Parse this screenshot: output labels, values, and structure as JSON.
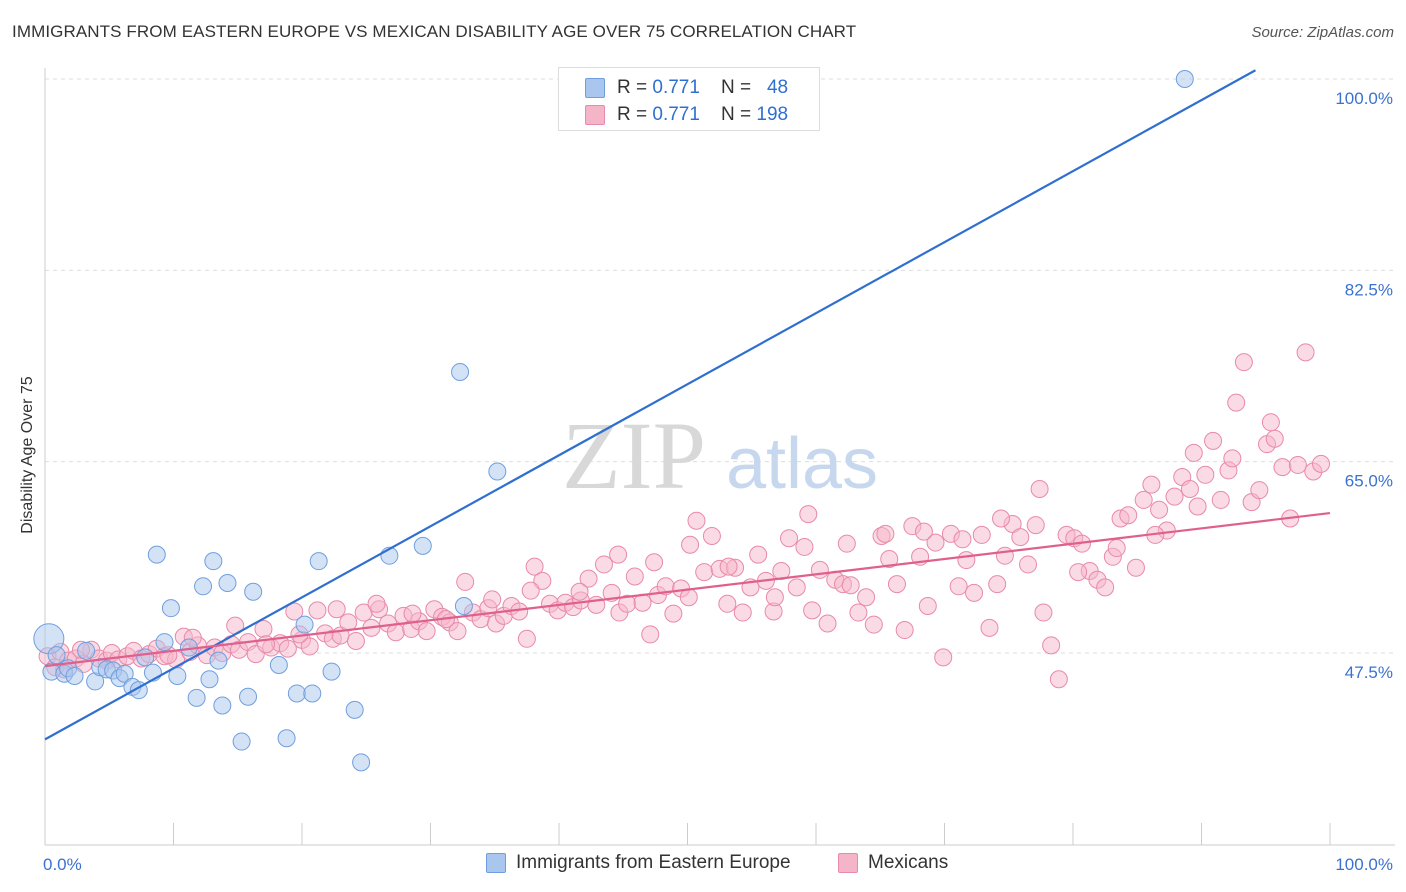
{
  "title": "IMMIGRANTS FROM EASTERN EUROPE VS MEXICAN DISABILITY AGE OVER 75 CORRELATION CHART",
  "source": "Source: ZipAtlas.com",
  "watermark": {
    "zip": "ZIP",
    "atlas": "atlas"
  },
  "legend_top": [
    {
      "r_label": "R = ",
      "r_value": "0.771",
      "n_label": "N = ",
      "n_value": "48",
      "color": "#a9c6ee"
    },
    {
      "r_label": "R = ",
      "r_value": "0.771",
      "n_label": "N = ",
      "n_value": "198",
      "color": "#f5b5c9"
    }
  ],
  "legend_bottom": [
    {
      "label": "Immigrants from Eastern Europe",
      "color": "#a9c6ee"
    },
    {
      "label": "Mexicans",
      "color": "#f5b5c9"
    }
  ],
  "chart_data": {
    "type": "scatter",
    "ylabel": "Disability Age Over 75",
    "xlim": [
      0,
      100
    ],
    "ylim": [
      29.3,
      100.8
    ],
    "y_ticks": [
      47.5,
      65.0,
      82.5,
      100.0
    ],
    "y_tick_labels": [
      "47.5%",
      "65.0%",
      "82.5%",
      "100.0%"
    ],
    "x_tick_labels": [
      "0.0%",
      "100.0%"
    ],
    "grid": true,
    "legend": "top-center",
    "colors": {
      "blue": "#2f6fd0",
      "pink": "#e0608d",
      "axis_label": "#3a72d0"
    },
    "series": [
      {
        "name": "Immigrants from Eastern Europe",
        "color": "#a9c6ee",
        "stroke": "#6f9fdf",
        "trend": {
          "x": [
            0,
            94.2
          ],
          "y": [
            39.6,
            100.8
          ]
        },
        "points": [
          [
            0.3,
            48.8
          ],
          [
            0.5,
            45.8
          ],
          [
            1.5,
            45.6
          ],
          [
            1.8,
            46.1
          ],
          [
            2.3,
            45.4
          ],
          [
            3.2,
            47.7
          ],
          [
            3.9,
            44.9
          ],
          [
            4.3,
            46.2
          ],
          [
            4.8,
            46.0
          ],
          [
            5.3,
            45.9
          ],
          [
            5.8,
            45.2
          ],
          [
            6.2,
            45.6
          ],
          [
            6.8,
            44.4
          ],
          [
            7.3,
            44.1
          ],
          [
            7.8,
            47.1
          ],
          [
            8.4,
            45.7
          ],
          [
            8.7,
            56.5
          ],
          [
            9.3,
            48.5
          ],
          [
            9.8,
            51.6
          ],
          [
            10.3,
            45.4
          ],
          [
            11.2,
            48.0
          ],
          [
            11.8,
            43.4
          ],
          [
            12.3,
            53.6
          ],
          [
            12.8,
            45.1
          ],
          [
            13.1,
            55.9
          ],
          [
            13.5,
            46.8
          ],
          [
            13.8,
            42.7
          ],
          [
            14.2,
            53.9
          ],
          [
            15.3,
            39.4
          ],
          [
            15.8,
            43.5
          ],
          [
            16.2,
            53.1
          ],
          [
            18.2,
            46.4
          ],
          [
            18.8,
            39.7
          ],
          [
            19.6,
            43.8
          ],
          [
            20.2,
            50.1
          ],
          [
            20.8,
            43.8
          ],
          [
            21.3,
            55.9
          ],
          [
            22.3,
            45.8
          ],
          [
            24.1,
            42.3
          ],
          [
            24.6,
            37.5
          ],
          [
            26.8,
            56.4
          ],
          [
            29.4,
            57.3
          ],
          [
            32.3,
            73.2
          ],
          [
            32.6,
            51.8
          ],
          [
            35.2,
            64.1
          ],
          [
            47.1,
            100.0
          ],
          [
            88.7,
            100.0
          ],
          [
            0.9,
            47.3
          ]
        ]
      },
      {
        "name": "Mexicans",
        "color": "#f5b5c9",
        "stroke": "#e88aab",
        "trend": {
          "x": [
            0,
            100
          ],
          "y": [
            46.3,
            60.3
          ]
        },
        "points": [
          [
            0.2,
            47.2
          ],
          [
            0.8,
            46.2
          ],
          [
            1.2,
            47.6
          ],
          [
            1.8,
            46.8
          ],
          [
            2.4,
            47.0
          ],
          [
            3.0,
            46.5
          ],
          [
            3.6,
            47.8
          ],
          [
            4.2,
            47.0
          ],
          [
            4.8,
            46.8
          ],
          [
            5.2,
            47.5
          ],
          [
            5.7,
            46.9
          ],
          [
            6.4,
            47.2
          ],
          [
            6.9,
            47.7
          ],
          [
            7.5,
            47.0
          ],
          [
            8.1,
            47.4
          ],
          [
            8.7,
            47.9
          ],
          [
            9.3,
            47.2
          ],
          [
            10.2,
            46.9
          ],
          [
            10.8,
            49.0
          ],
          [
            11.3,
            47.6
          ],
          [
            11.9,
            48.2
          ],
          [
            12.6,
            47.3
          ],
          [
            13.2,
            48.0
          ],
          [
            13.8,
            47.5
          ],
          [
            14.5,
            48.3
          ],
          [
            15.1,
            47.8
          ],
          [
            15.8,
            48.5
          ],
          [
            16.4,
            47.4
          ],
          [
            17.0,
            49.7
          ],
          [
            17.6,
            48.0
          ],
          [
            18.3,
            48.4
          ],
          [
            18.9,
            47.9
          ],
          [
            19.4,
            51.3
          ],
          [
            20.0,
            48.7
          ],
          [
            20.6,
            48.1
          ],
          [
            21.2,
            51.4
          ],
          [
            21.8,
            49.3
          ],
          [
            22.4,
            48.8
          ],
          [
            23.0,
            49.1
          ],
          [
            23.6,
            50.3
          ],
          [
            24.2,
            48.6
          ],
          [
            24.8,
            51.2
          ],
          [
            25.4,
            49.8
          ],
          [
            26.0,
            51.5
          ],
          [
            26.7,
            50.2
          ],
          [
            27.3,
            49.4
          ],
          [
            27.9,
            50.9
          ],
          [
            28.5,
            49.7
          ],
          [
            29.1,
            50.4
          ],
          [
            29.7,
            49.5
          ],
          [
            30.3,
            51.5
          ],
          [
            30.9,
            50.8
          ],
          [
            31.5,
            50.3
          ],
          [
            32.1,
            49.5
          ],
          [
            32.7,
            54.0
          ],
          [
            33.3,
            51.2
          ],
          [
            33.9,
            50.6
          ],
          [
            34.5,
            51.6
          ],
          [
            35.1,
            50.2
          ],
          [
            35.7,
            50.9
          ],
          [
            36.3,
            51.8
          ],
          [
            36.9,
            51.3
          ],
          [
            37.5,
            48.8
          ],
          [
            38.1,
            55.4
          ],
          [
            38.7,
            54.1
          ],
          [
            39.3,
            52.0
          ],
          [
            39.9,
            51.4
          ],
          [
            40.5,
            52.1
          ],
          [
            41.1,
            51.7
          ],
          [
            41.7,
            52.3
          ],
          [
            42.3,
            54.3
          ],
          [
            42.9,
            51.9
          ],
          [
            43.5,
            55.6
          ],
          [
            44.1,
            53.0
          ],
          [
            44.7,
            51.2
          ],
          [
            45.3,
            52.0
          ],
          [
            45.9,
            54.5
          ],
          [
            46.5,
            52.1
          ],
          [
            47.1,
            49.2
          ],
          [
            47.7,
            52.8
          ],
          [
            48.3,
            53.6
          ],
          [
            48.9,
            51.1
          ],
          [
            49.5,
            53.4
          ],
          [
            50.1,
            52.6
          ],
          [
            50.7,
            59.6
          ],
          [
            51.3,
            54.9
          ],
          [
            51.9,
            58.2
          ],
          [
            52.5,
            55.2
          ],
          [
            53.1,
            52.0
          ],
          [
            53.7,
            55.3
          ],
          [
            54.3,
            51.2
          ],
          [
            54.9,
            53.5
          ],
          [
            55.5,
            56.5
          ],
          [
            56.1,
            54.1
          ],
          [
            56.7,
            51.3
          ],
          [
            57.3,
            55.0
          ],
          [
            57.9,
            58.0
          ],
          [
            58.5,
            53.5
          ],
          [
            59.1,
            57.2
          ],
          [
            59.7,
            51.4
          ],
          [
            60.3,
            55.1
          ],
          [
            60.9,
            50.2
          ],
          [
            61.5,
            54.2
          ],
          [
            62.1,
            53.8
          ],
          [
            62.7,
            53.7
          ],
          [
            63.3,
            51.2
          ],
          [
            63.9,
            52.6
          ],
          [
            64.5,
            50.1
          ],
          [
            65.1,
            58.2
          ],
          [
            65.7,
            56.1
          ],
          [
            66.3,
            53.8
          ],
          [
            66.9,
            49.6
          ],
          [
            67.5,
            59.1
          ],
          [
            68.1,
            56.3
          ],
          [
            68.7,
            51.8
          ],
          [
            69.3,
            57.6
          ],
          [
            69.9,
            47.1
          ],
          [
            70.5,
            58.4
          ],
          [
            71.1,
            53.6
          ],
          [
            71.7,
            56.0
          ],
          [
            72.3,
            53.0
          ],
          [
            72.9,
            58.3
          ],
          [
            73.5,
            49.8
          ],
          [
            74.1,
            53.8
          ],
          [
            74.7,
            56.4
          ],
          [
            75.3,
            59.3
          ],
          [
            75.9,
            58.1
          ],
          [
            76.5,
            55.6
          ],
          [
            77.1,
            59.2
          ],
          [
            77.7,
            51.2
          ],
          [
            78.3,
            48.2
          ],
          [
            78.9,
            45.1
          ],
          [
            79.5,
            58.3
          ],
          [
            80.1,
            58.0
          ],
          [
            80.7,
            57.5
          ],
          [
            81.3,
            55.0
          ],
          [
            81.9,
            54.2
          ],
          [
            82.5,
            53.5
          ],
          [
            83.1,
            56.3
          ],
          [
            83.7,
            59.8
          ],
          [
            84.3,
            60.1
          ],
          [
            84.9,
            55.3
          ],
          [
            85.5,
            61.5
          ],
          [
            86.1,
            62.9
          ],
          [
            86.7,
            60.6
          ],
          [
            87.3,
            58.7
          ],
          [
            87.9,
            61.8
          ],
          [
            88.5,
            63.6
          ],
          [
            89.1,
            62.5
          ],
          [
            89.7,
            60.9
          ],
          [
            90.3,
            63.8
          ],
          [
            90.9,
            66.9
          ],
          [
            91.5,
            61.5
          ],
          [
            92.1,
            64.2
          ],
          [
            92.7,
            70.4
          ],
          [
            93.3,
            74.1
          ],
          [
            93.9,
            61.3
          ],
          [
            94.5,
            62.4
          ],
          [
            95.1,
            66.6
          ],
          [
            95.7,
            67.1
          ],
          [
            96.3,
            64.5
          ],
          [
            96.9,
            59.8
          ],
          [
            97.5,
            64.7
          ],
          [
            98.1,
            75.0
          ],
          [
            98.7,
            64.1
          ],
          [
            99.3,
            64.8
          ],
          [
            1.5,
            46.0
          ],
          [
            2.8,
            47.8
          ],
          [
            9.6,
            47.3
          ],
          [
            11.5,
            48.9
          ],
          [
            14.8,
            50.0
          ],
          [
            17.2,
            48.3
          ],
          [
            19.8,
            49.2
          ],
          [
            22.7,
            51.5
          ],
          [
            25.8,
            52.0
          ],
          [
            28.6,
            51.1
          ],
          [
            31.2,
            50.6
          ],
          [
            34.8,
            52.4
          ],
          [
            37.8,
            53.2
          ],
          [
            41.6,
            53.1
          ],
          [
            44.6,
            56.5
          ],
          [
            47.4,
            55.8
          ],
          [
            50.2,
            57.4
          ],
          [
            53.2,
            55.4
          ],
          [
            56.8,
            52.6
          ],
          [
            59.4,
            60.2
          ],
          [
            62.4,
            57.5
          ],
          [
            65.4,
            58.4
          ],
          [
            68.4,
            58.6
          ],
          [
            71.4,
            57.9
          ],
          [
            74.4,
            59.8
          ],
          [
            77.4,
            62.5
          ],
          [
            80.4,
            54.9
          ],
          [
            83.4,
            57.1
          ],
          [
            86.4,
            58.3
          ],
          [
            89.4,
            65.8
          ],
          [
            92.4,
            65.3
          ],
          [
            95.4,
            68.6
          ]
        ]
      }
    ]
  }
}
